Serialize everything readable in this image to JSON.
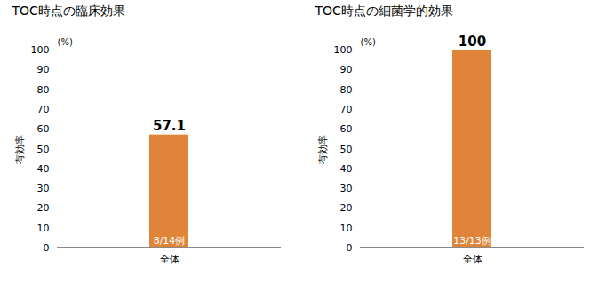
{
  "chart_data": [
    {
      "type": "bar",
      "title": "TOC時点の臨床効果",
      "categories": [
        "全体"
      ],
      "values": [
        57.1
      ],
      "color": "#E0843A",
      "ylabel": "有効率",
      "ylim": [
        0,
        100
      ],
      "yticks": [
        0,
        10,
        20,
        30,
        40,
        50,
        60,
        70,
        80,
        90,
        100
      ],
      "grid": false,
      "data_labels": true,
      "annotations": [
        {
          "text": "(%)"
        },
        {
          "text": "8/14例",
          "x": "全体"
        }
      ]
    },
    {
      "type": "bar",
      "title": "TOC時点の細菌学的効果",
      "categories": [
        "全体"
      ],
      "values": [
        100
      ],
      "color": "#E0843A",
      "ylabel": "有効率",
      "ylim": [
        0,
        100
      ],
      "yticks": [
        0,
        10,
        20,
        30,
        40,
        50,
        60,
        70,
        80,
        90,
        100
      ],
      "grid": false,
      "data_labels": true,
      "annotations": [
        {
          "text": "(%)"
        },
        {
          "text": "13/13例",
          "x": "全体"
        }
      ]
    }
  ]
}
